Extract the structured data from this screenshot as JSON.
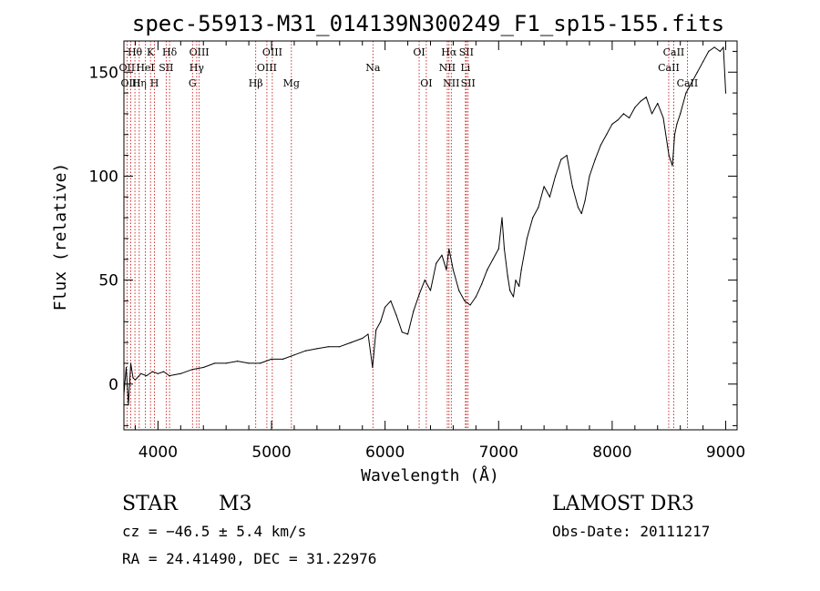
{
  "chart_data": {
    "type": "line",
    "title": "spec-55913-M31_014139N300249_F1_sp15-155.fits",
    "xlabel": "Wavelength (Å)",
    "ylabel": "Flux (relative)",
    "xlim": [
      3700,
      9100
    ],
    "ylim": [
      -22,
      165
    ],
    "xticks": [
      4000,
      5000,
      6000,
      7000,
      8000,
      9000
    ],
    "yticks": [
      0,
      50,
      100,
      150
    ],
    "xticklabels": [
      "4000",
      "5000",
      "6000",
      "7000",
      "8000",
      "9000"
    ],
    "yticklabels": [
      "0",
      "50",
      "100",
      "150"
    ],
    "grid": false,
    "series": [
      {
        "name": "flux",
        "x": [
          3700,
          3720,
          3740,
          3760,
          3780,
          3800,
          3850,
          3900,
          3950,
          4000,
          4050,
          4100,
          4200,
          4300,
          4400,
          4500,
          4600,
          4700,
          4800,
          4900,
          5000,
          5100,
          5200,
          5300,
          5400,
          5500,
          5600,
          5700,
          5800,
          5850,
          5890,
          5920,
          5960,
          6000,
          6050,
          6100,
          6150,
          6200,
          6250,
          6300,
          6350,
          6400,
          6450,
          6500,
          6540,
          6563,
          6600,
          6650,
          6700,
          6750,
          6800,
          6850,
          6900,
          6950,
          7000,
          7030,
          7050,
          7080,
          7100,
          7130,
          7150,
          7180,
          7200,
          7250,
          7300,
          7350,
          7400,
          7450,
          7500,
          7550,
          7600,
          7650,
          7700,
          7730,
          7760,
          7800,
          7850,
          7900,
          7950,
          8000,
          8050,
          8100,
          8150,
          8200,
          8250,
          8300,
          8350,
          8400,
          8450,
          8500,
          8530,
          8550,
          8570,
          8600,
          8650,
          8700,
          8750,
          8800,
          8850,
          8900,
          8950,
          8980,
          9000
        ],
        "y": [
          -5,
          8,
          -10,
          10,
          3,
          2,
          5,
          4,
          6,
          5,
          6,
          4,
          5,
          7,
          8,
          10,
          10,
          11,
          10,
          10,
          12,
          12,
          14,
          16,
          17,
          18,
          18,
          20,
          22,
          24,
          8,
          26,
          30,
          37,
          40,
          33,
          25,
          24,
          35,
          43,
          50,
          45,
          58,
          62,
          55,
          65,
          55,
          45,
          40,
          38,
          42,
          48,
          55,
          60,
          65,
          80,
          65,
          52,
          45,
          42,
          50,
          47,
          55,
          70,
          80,
          85,
          95,
          90,
          100,
          108,
          110,
          95,
          85,
          82,
          88,
          100,
          108,
          115,
          120,
          125,
          127,
          130,
          128,
          133,
          136,
          138,
          130,
          135,
          128,
          110,
          105,
          120,
          125,
          130,
          140,
          145,
          150,
          155,
          160,
          162,
          160,
          162,
          140
        ]
      }
    ],
    "emission_lines": [
      {
        "name": "Hθ",
        "x": 3797,
        "row": 0
      },
      {
        "name": "OII",
        "x": 3727,
        "row": 1
      },
      {
        "name": "OIII",
        "x": 3760,
        "row": 2
      },
      {
        "name": "K",
        "x": 3934,
        "row": 0
      },
      {
        "name": "Hη",
        "x": 3835,
        "row": 2
      },
      {
        "name": "HeI",
        "x": 3889,
        "row": 1
      },
      {
        "name": "H",
        "x": 3969,
        "row": 2
      },
      {
        "name": "SII",
        "x": 4072,
        "row": 1
      },
      {
        "name": "Hδ",
        "x": 4102,
        "row": 0
      },
      {
        "name": "OIII",
        "x": 4363,
        "row": 0
      },
      {
        "name": "Hγ",
        "x": 4341,
        "row": 1
      },
      {
        "name": "G",
        "x": 4304,
        "row": 2
      },
      {
        "name": "Hβ",
        "x": 4861,
        "row": 2
      },
      {
        "name": "OIII",
        "x": 4959,
        "row": 1
      },
      {
        "name": "OIII",
        "x": 5007,
        "row": 0
      },
      {
        "name": "Mg",
        "x": 5175,
        "row": 2
      },
      {
        "name": "Na",
        "x": 5893,
        "row": 1
      },
      {
        "name": "OI",
        "x": 6300,
        "row": 0
      },
      {
        "name": "OI",
        "x": 6363,
        "row": 2
      },
      {
        "name": "Hα",
        "x": 6563,
        "row": 0
      },
      {
        "name": "NII",
        "x": 6548,
        "row": 1
      },
      {
        "name": "NII",
        "x": 6583,
        "row": 2
      },
      {
        "name": "SII",
        "x": 6716,
        "row": 0
      },
      {
        "name": "Li",
        "x": 6708,
        "row": 1
      },
      {
        "name": "SII",
        "x": 6731,
        "row": 2
      },
      {
        "name": "CaII",
        "x": 8542,
        "row": 0
      },
      {
        "name": "CaII",
        "x": 8498,
        "row": 1
      },
      {
        "name": "CaII",
        "x": 8662,
        "row": 2
      }
    ],
    "colors": {
      "line": "#000000",
      "emission_marker": "#c00000"
    }
  },
  "info": {
    "object_class": "STAR",
    "subclass": "M3",
    "survey": "LAMOST DR3",
    "cz": "cz = −46.5 ± 5.4 km/s",
    "obs_date": "Obs-Date: 20111217",
    "coords": "RA =  24.41490, DEC =  31.22976"
  }
}
